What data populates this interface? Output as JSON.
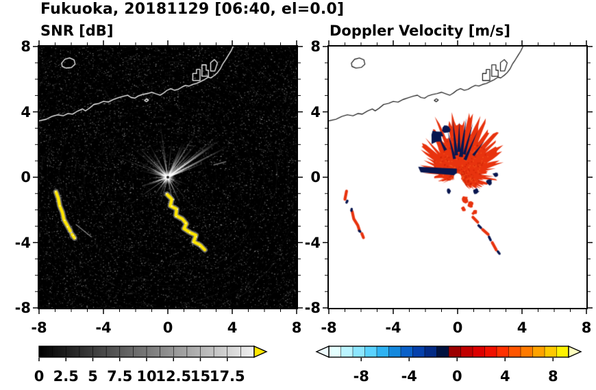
{
  "figure_title": "Fukuoka, 20181129 [06:40, el=0.0]",
  "accent_colors": {
    "snr_over": "#ffe600",
    "velocity_positive": "#e8330e",
    "velocity_negative": "#08164f"
  },
  "coastline": {
    "mainland": [
      [
        -8,
        3.45
      ],
      [
        -7.55,
        3.55
      ],
      [
        -7.2,
        3.72
      ],
      [
        -6.85,
        3.82
      ],
      [
        -6.5,
        3.76
      ],
      [
        -6.2,
        3.9
      ],
      [
        -5.92,
        3.86
      ],
      [
        -5.6,
        4.05
      ],
      [
        -5.3,
        4.18
      ],
      [
        -5.12,
        4.06
      ],
      [
        -4.88,
        4.22
      ],
      [
        -4.6,
        4.45
      ],
      [
        -4.28,
        4.52
      ],
      [
        -4,
        4.64
      ],
      [
        -3.7,
        4.6
      ],
      [
        -3.38,
        4.76
      ],
      [
        -3.05,
        4.87
      ],
      [
        -2.75,
        4.96
      ],
      [
        -2.5,
        5.02
      ],
      [
        -2.28,
        4.88
      ],
      [
        -2.05,
        4.84
      ],
      [
        -1.85,
        4.97
      ],
      [
        -1.58,
        5.06
      ],
      [
        -1.28,
        5.12
      ],
      [
        -1,
        5.2
      ],
      [
        -0.72,
        5.1
      ],
      [
        -0.48,
        5.02
      ],
      [
        -0.28,
        5.14
      ],
      [
        -0.05,
        5.32
      ],
      [
        0.18,
        5.42
      ],
      [
        0.42,
        5.32
      ],
      [
        0.65,
        5.38
      ],
      [
        0.88,
        5.52
      ],
      [
        1.1,
        5.62
      ],
      [
        1.32,
        5.58
      ],
      [
        1.55,
        5.68
      ],
      [
        1.78,
        5.74
      ],
      [
        2,
        5.84
      ],
      [
        2.25,
        5.96
      ],
      [
        2.5,
        6.12
      ],
      [
        2.68,
        6.08
      ],
      [
        2.9,
        6.24
      ],
      [
        3.08,
        6.4
      ],
      [
        3.25,
        6.62
      ],
      [
        3.42,
        6.95
      ],
      [
        3.58,
        7.18
      ],
      [
        3.75,
        7.45
      ],
      [
        3.92,
        7.72
      ],
      [
        4.08,
        8.05
      ]
    ],
    "islands": [
      [
        [
          -6.6,
          6.98
        ],
        [
          -6.4,
          7.22
        ],
        [
          -6.1,
          7.3
        ],
        [
          -5.82,
          7.18
        ],
        [
          -5.76,
          6.92
        ],
        [
          -5.98,
          6.72
        ],
        [
          -6.32,
          6.68
        ],
        [
          -6.56,
          6.78
        ]
      ],
      [
        [
          -1.45,
          4.7
        ],
        [
          -1.32,
          4.8
        ],
        [
          -1.2,
          4.72
        ],
        [
          -1.33,
          4.62
        ]
      ]
    ],
    "piers": [
      [
        [
          1.55,
          5.92
        ],
        [
          1.55,
          6.35
        ],
        [
          1.78,
          6.35
        ],
        [
          1.78,
          6.6
        ],
        [
          2,
          6.6
        ],
        [
          2,
          5.92
        ]
      ],
      [
        [
          2.12,
          6.18
        ],
        [
          2.12,
          6.88
        ],
        [
          2.38,
          6.88
        ],
        [
          2.38,
          6.55
        ],
        [
          2.52,
          6.55
        ],
        [
          2.52,
          6.18
        ]
      ],
      [
        [
          2.66,
          6.5
        ],
        [
          2.66,
          7.02
        ],
        [
          2.9,
          7.2
        ],
        [
          3.08,
          7
        ],
        [
          2.92,
          6.5
        ]
      ]
    ]
  },
  "chart_data": [
    {
      "type": "heatmap",
      "subtype": "radar-ppi",
      "title": "SNR [dB]",
      "xlim": [
        -8,
        8
      ],
      "ylim": [
        -8,
        8
      ],
      "x_tick_values": [
        -8,
        -4,
        0,
        4,
        8
      ],
      "x_tick_labels": [
        "-8",
        "-4",
        "0",
        "4",
        "8"
      ],
      "y_tick_values": [
        8,
        4,
        0,
        -4,
        -8
      ],
      "y_tick_labels": [
        "8",
        "4",
        "0",
        "-4",
        "-8"
      ],
      "background_color": "#000000",
      "coast_color": "#ffffff",
      "radar_center": [
        0,
        0
      ],
      "colorbar": {
        "orientation": "horizontal",
        "range": [
          0,
          20
        ],
        "tick_values": [
          0,
          2.5,
          5,
          7.5,
          10,
          12.5,
          15,
          17.5
        ],
        "tick_labels": [
          "0",
          "2.5",
          "5",
          "7.5",
          "10",
          "12.5",
          "15",
          "17.5"
        ],
        "colormap": "grayscale",
        "start_color": "#000000",
        "end_color": "#f0f0f0",
        "over_arrow_color": "#ffe600"
      },
      "render": {
        "seed": 7,
        "noise_count": 11000,
        "ring_spacing": 0.75,
        "core_glow_radius": 0.45,
        "ray_sectors": [
          {
            "angles": [
              15,
              168
            ],
            "count": 42,
            "len": [
              1.2,
              4.3
            ]
          },
          {
            "angles": [
              168,
              235
            ],
            "count": 7,
            "len": [
              0.8,
              2.6
            ]
          },
          {
            "angles": [
              -80,
              -12
            ],
            "count": 6,
            "len": [
              0.9,
              3.1
            ]
          },
          {
            "angles": [
              -140,
              -95
            ],
            "count": 4,
            "len": [
              0.7,
              2.0
            ]
          },
          {
            "angles": [
              0,
              360
            ],
            "count": 30,
            "len": [
              0.15,
              0.8
            ]
          }
        ],
        "strong_echoes": [
          {
            "name": "west-arc",
            "points": [
              [
                -6.95,
                -0.9
              ],
              [
                -6.8,
                -1.3
              ],
              [
                -6.72,
                -1.75
              ],
              [
                -6.55,
                -2.15
              ],
              [
                -6.45,
                -2.6
              ],
              [
                -6.25,
                -2.95
              ],
              [
                -6.05,
                -3.3
              ]
            ]
          },
          {
            "name": "west-blob",
            "points": [
              [
                -5.95,
                -3.5
              ],
              [
                -5.8,
                -3.72
              ]
            ]
          },
          {
            "name": "south-chain",
            "points": [
              [
                -0.05,
                -1.05
              ],
              [
                0.25,
                -1.35
              ],
              [
                0.15,
                -1.75
              ],
              [
                0.55,
                -1.95
              ],
              [
                0.5,
                -2.35
              ],
              [
                0.9,
                -2.55
              ],
              [
                1.15,
                -2.85
              ],
              [
                1.0,
                -3.15
              ],
              [
                1.4,
                -3.4
              ],
              [
                1.75,
                -3.55
              ],
              [
                1.6,
                -3.95
              ],
              [
                2.0,
                -4.15
              ],
              [
                2.3,
                -4.45
              ]
            ]
          }
        ],
        "faint_segments": [
          [
            [
              -5.7,
              -2.9
            ],
            [
              -4.75,
              -3.65
            ]
          ],
          [
            [
              2.85,
              0.75
            ],
            [
              3.6,
              0.95
            ]
          ]
        ]
      }
    },
    {
      "type": "heatmap",
      "subtype": "radar-ppi",
      "title": "Doppler Velocity [m/s]",
      "xlim": [
        -8,
        8
      ],
      "ylim": [
        -8,
        8
      ],
      "x_tick_values": [
        -8,
        -4,
        0,
        4,
        8
      ],
      "x_tick_labels": [
        "-8",
        "-4",
        "0",
        "4",
        "8"
      ],
      "y_tick_values": [
        8,
        4,
        0,
        -4,
        -8
      ],
      "y_tick_labels": [
        "8",
        "4",
        "0",
        "-4",
        "-8"
      ],
      "background_color": "#ffffff",
      "coast_color": "#000000",
      "radar_center": [
        0,
        0
      ],
      "colorbar": {
        "orientation": "horizontal",
        "range": [
          -10.7,
          9.3
        ],
        "tick_values": [
          -8,
          -4,
          0,
          4,
          8
        ],
        "tick_labels": [
          "-8",
          "-4",
          "0",
          "4",
          "8"
        ],
        "colormap": "blue-to-red",
        "segment_colors": [
          "#e4ffff",
          "#baf4ff",
          "#8ce6ff",
          "#5ad2ff",
          "#2eb2f2",
          "#1488dd",
          "#0a60c8",
          "#0540ab",
          "#022a85",
          "#01123f",
          "#9c0000",
          "#c00000",
          "#dc0000",
          "#f01000",
          "#ff3000",
          "#ff5500",
          "#ff7a00",
          "#ffa200",
          "#ffc900",
          "#fff200"
        ],
        "under_arrow_color": "#eefcff",
        "over_arrow_color": "#ffffbe"
      },
      "render": {
        "seed": 11,
        "echo_center": [
          0.05,
          0.15
        ],
        "echo_angle_range": [
          -55,
          215
        ],
        "echo_radius_profile": [
          [
            -55,
            0.9
          ],
          [
            -40,
            1.3
          ],
          [
            -20,
            1.6
          ],
          [
            0,
            1.8
          ],
          [
            20,
            2.7
          ],
          [
            45,
            2.9
          ],
          [
            70,
            3.2
          ],
          [
            90,
            3.3
          ],
          [
            110,
            2.9
          ],
          [
            130,
            2.5
          ],
          [
            150,
            2.3
          ],
          [
            170,
            1.9
          ],
          [
            190,
            1.3
          ],
          [
            215,
            0.6
          ]
        ],
        "center_hole_radius": 0.24,
        "negative_polygons": [
          [
            [
              -0.05,
              0.52
            ],
            [
              -2.45,
              0.64
            ],
            [
              -2.3,
              0.3
            ],
            [
              -0.05,
              0.1
            ]
          ]
        ],
        "negative_spikes": [
          {
            "a": 66,
            "r0": 1.0,
            "r1": 2.9,
            "w": 0.1
          },
          {
            "a": 74,
            "r0": 1.3,
            "r1": 3.3,
            "w": 0.09
          },
          {
            "a": 82,
            "r0": 1.1,
            "r1": 3.5,
            "w": 0.12
          },
          {
            "a": 89,
            "r0": 1.4,
            "r1": 3.25,
            "w": 0.1
          },
          {
            "a": 96,
            "r0": 1.2,
            "r1": 3.4,
            "w": 0.11
          },
          {
            "a": 104,
            "r0": 1.0,
            "r1": 2.85,
            "w": 0.09
          },
          {
            "a": 52,
            "r0": 1.5,
            "r1": 2.6,
            "w": 0.08
          },
          {
            "a": 118,
            "r0": 1.7,
            "r1": 2.7,
            "w": 0.1
          }
        ],
        "negative_blobs": [
          {
            "c": [
              -1.35,
              2.5
            ],
            "r": 0.4
          },
          {
            "c": [
              -0.7,
              2.95
            ],
            "r": 0.22
          },
          {
            "c": [
              1.95,
              -0.3
            ],
            "r": 0.18
          },
          {
            "c": [
              2.35,
              0.15
            ],
            "r": 0.15
          },
          {
            "c": [
              1.15,
              -0.85
            ],
            "r": 0.17
          },
          {
            "c": [
              -0.55,
              -0.85
            ],
            "r": 0.14
          }
        ],
        "positive_fragments": [
          {
            "c": [
              0.45,
              -1.35
            ],
            "r": 0.22
          },
          {
            "c": [
              0.8,
              -1.7
            ],
            "r": 0.18
          },
          {
            "c": [
              0.35,
              -1.95
            ],
            "r": 0.14
          },
          {
            "c": [
              1.05,
              -2.15
            ],
            "r": 0.16
          }
        ],
        "mixed_segments": [
          {
            "neg": false,
            "pts": [
              [
                0.95,
                -2.45
              ],
              [
                1.25,
                -2.75
              ]
            ]
          },
          {
            "neg": true,
            "pts": [
              [
                1.3,
                -2.95
              ],
              [
                1.45,
                -3.1
              ]
            ]
          },
          {
            "neg": false,
            "pts": [
              [
                1.55,
                -3.2
              ],
              [
                1.9,
                -3.5
              ]
            ]
          },
          {
            "neg": true,
            "pts": [
              [
                1.95,
                -3.65
              ],
              [
                2.05,
                -3.85
              ]
            ]
          },
          {
            "neg": false,
            "pts": [
              [
                2.15,
                -4.0
              ],
              [
                2.4,
                -4.45
              ]
            ]
          },
          {
            "neg": true,
            "pts": [
              [
                2.5,
                -4.55
              ],
              [
                2.6,
                -4.68
              ]
            ]
          },
          {
            "neg": false,
            "pts": [
              [
                -6.9,
                -0.85
              ],
              [
                -7.0,
                -1.35
              ]
            ]
          },
          {
            "neg": true,
            "pts": [
              [
                -6.85,
                -1.45
              ],
              [
                -6.9,
                -1.55
              ]
            ]
          },
          {
            "neg": false,
            "pts": [
              [
                -6.55,
                -2.1
              ],
              [
                -6.45,
                -2.55
              ],
              [
                -6.2,
                -2.95
              ],
              [
                -6.1,
                -3.25
              ]
            ]
          },
          {
            "neg": true,
            "pts": [
              [
                -6.58,
                -1.95
              ],
              [
                -6.6,
                -2.05
              ]
            ]
          },
          {
            "neg": false,
            "pts": [
              [
                -5.95,
                -3.45
              ],
              [
                -5.85,
                -3.7
              ]
            ]
          },
          {
            "neg": true,
            "pts": [
              [
                -6.05,
                -3.33
              ],
              [
                -6.12,
                -3.28
              ]
            ]
          }
        ]
      }
    }
  ]
}
